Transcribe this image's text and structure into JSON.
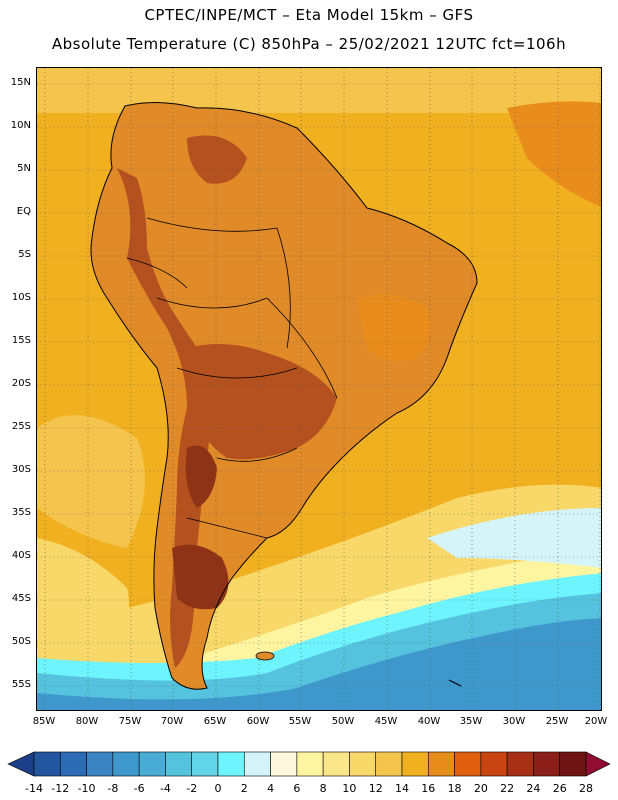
{
  "header": {
    "line1": "CPTEC/INPE/MCT –  Eta Model 15km – GFS",
    "line2": "Absolute Temperature (C) 850hPa – 25/02/2021 12UTC fct=106h"
  },
  "map": {
    "lat_labels": [
      "15N",
      "10N",
      "5N",
      "EQ",
      "5S",
      "10S",
      "15S",
      "20S",
      "25S",
      "30S",
      "35S",
      "40S",
      "45S",
      "50S",
      "55S"
    ],
    "lon_labels": [
      "85W",
      "80W",
      "75W",
      "70W",
      "65W",
      "60W",
      "55W",
      "50W",
      "45W",
      "40W",
      "35W",
      "30W",
      "25W",
      "20W"
    ],
    "colors": {
      "ocean_warm": "#f0b020",
      "land_warm": "#e08a28",
      "land_hot": "#b4511f",
      "land_very_hot": "#8e3316",
      "cool_ocean": "#f5d878",
      "cold_ocean": "#3b8cc6",
      "cold_band": "#5ecde6",
      "coast_line": "#000000",
      "grid_line": "#555555"
    }
  },
  "colorbar": {
    "labels": [
      "-14",
      "-12",
      "-10",
      "-8",
      "-6",
      "-4",
      "-2",
      "0",
      "2",
      "4",
      "6",
      "8",
      "10",
      "12",
      "14",
      "16",
      "18",
      "20",
      "22",
      "24",
      "26",
      "28"
    ],
    "colors": [
      "#1c3f8a",
      "#2456a0",
      "#2c6cb4",
      "#3a84c4",
      "#3e98cc",
      "#49acd6",
      "#55c2de",
      "#61d4e8",
      "#6ef4ff",
      "#d4f4fa",
      "#fff8de",
      "#fff4a0",
      "#fae68a",
      "#f8d868",
      "#f4c44c",
      "#f0b020",
      "#e88c1c",
      "#e06010",
      "#c84410",
      "#a83014",
      "#8c2018",
      "#701414",
      "#900c30"
    ]
  }
}
